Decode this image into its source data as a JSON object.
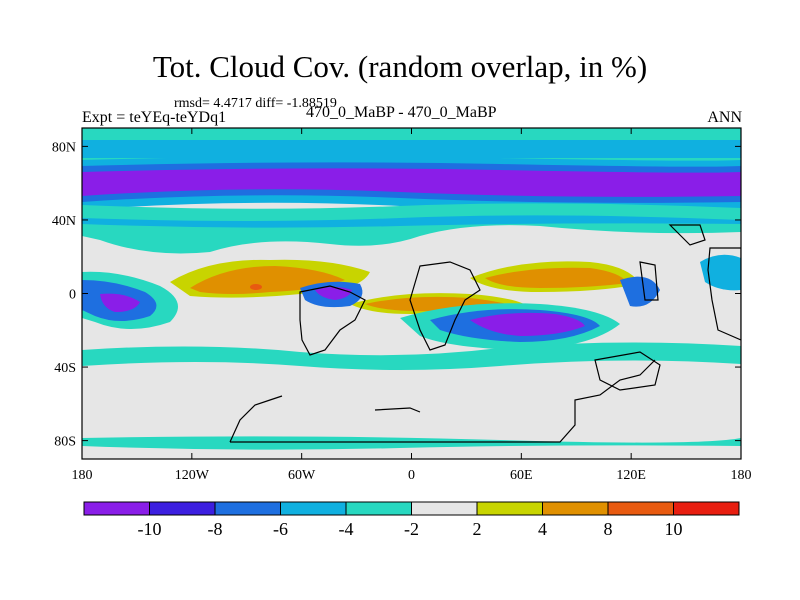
{
  "figure": {
    "title": "Tot. Cloud Cov. (random overlap, in %)",
    "rmsd_text": "rmsd= 4.4717",
    "diff_text": "diff= -1.88519",
    "experiment": "Expt = teYEq-teYDq1",
    "cases": "470_0_MaBP - 470_0_MaBP",
    "season": "ANN"
  },
  "chart_data": {
    "type": "heatmap",
    "projection": "cylindrical-equidistant",
    "variable": "Total cloud cover difference (random overlap)",
    "units": "%",
    "lon_range": [
      -180,
      180
    ],
    "lat_range": [
      -90,
      90
    ],
    "x_ticks": [
      {
        "value": -180,
        "label": "180"
      },
      {
        "value": -120,
        "label": "120W"
      },
      {
        "value": -60,
        "label": "60W"
      },
      {
        "value": 0,
        "label": "0"
      },
      {
        "value": 60,
        "label": "60E"
      },
      {
        "value": 120,
        "label": "120E"
      },
      {
        "value": 180,
        "label": "180"
      }
    ],
    "y_ticks": [
      {
        "value": 80,
        "label": "80N"
      },
      {
        "value": 40,
        "label": "40N"
      },
      {
        "value": 0,
        "label": "0"
      },
      {
        "value": -40,
        "label": "40S"
      },
      {
        "value": -80,
        "label": "80S"
      }
    ],
    "colorbar": {
      "levels": [
        -10,
        -8,
        -6,
        -4,
        -2,
        2,
        4,
        8,
        10
      ],
      "labels": [
        "-10",
        "-8",
        "-6",
        "-4",
        "-2",
        "2",
        "4",
        "8",
        "10"
      ],
      "colors": [
        "#8a1ee8",
        "#3c1fe0",
        "#1e6fe0",
        "#10b0e0",
        "#28d8c0",
        "#e6e6e6",
        "#c8d400",
        "#e09000",
        "#e85a10",
        "#e81e10"
      ]
    },
    "features": [
      {
        "name": "northern-polar-negative-band",
        "lon": [
          -180,
          180
        ],
        "lat": [
          50,
          75
        ],
        "value": -10
      },
      {
        "name": "arctic-negative",
        "lon": [
          -180,
          180
        ],
        "lat": [
          75,
          90
        ],
        "value": -4
      },
      {
        "name": "north-midlat-negative",
        "lon": [
          -180,
          180
        ],
        "lat": [
          38,
          50
        ],
        "value": -4
      },
      {
        "name": "north-pacific-positive",
        "lon": [
          -150,
          -60
        ],
        "lat": [
          3,
          20
        ],
        "value": 6
      },
      {
        "name": "asia-pacific-positive",
        "lon": [
          40,
          120
        ],
        "lat": [
          5,
          20
        ],
        "value": 6
      },
      {
        "name": "equatorial-atlantic-positive",
        "lon": [
          -30,
          60
        ],
        "lat": [
          -10,
          0
        ],
        "value": 6
      },
      {
        "name": "south-indian-negative",
        "lon": [
          30,
          100
        ],
        "lat": [
          -25,
          -5
        ],
        "value": -9
      },
      {
        "name": "west-pacific-negative",
        "lon": [
          -180,
          -130
        ],
        "lat": [
          -20,
          10
        ],
        "value": -9
      },
      {
        "name": "south-america-negative",
        "lon": [
          -60,
          -30
        ],
        "lat": [
          -10,
          5
        ],
        "value": -8
      },
      {
        "name": "southern-ocean-negative",
        "lon": [
          -180,
          180
        ],
        "lat": [
          -55,
          -40
        ],
        "value": -3
      }
    ]
  }
}
